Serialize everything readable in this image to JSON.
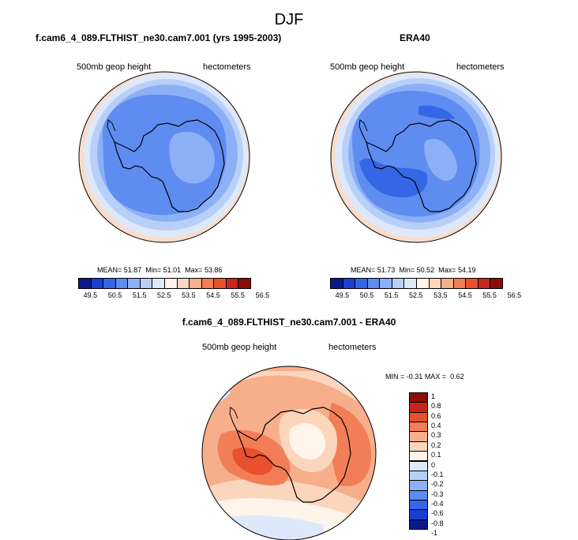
{
  "figure": {
    "title": "DJF"
  },
  "panels": [
    {
      "id": "model",
      "title": "f.cam6_4_089.FLTHIST_ne30.cam7.001 (yrs 1995-2003)",
      "variable": "500mb geop height",
      "units": "hectometers",
      "mean_label": "MEAN=",
      "mean": "51.87",
      "min_label": "Min=",
      "min": "51.01",
      "max_label": "Max=",
      "max": "53.86"
    },
    {
      "id": "obs",
      "title": "ERA40",
      "variable": "500mb geop height",
      "units": "hectometers",
      "mean_label": "MEAN=",
      "mean": "51.73",
      "min_label": "Min=",
      "min": "50.52",
      "max_label": "Max=",
      "max": "54.19"
    }
  ],
  "diff_panel": {
    "title": "f.cam6_4_089.FLTHIST_ne30.cam7.001 - ERA40",
    "variable": "500mb geop height",
    "units": "hectometers",
    "min_label": "MIN =",
    "min": "-0.31",
    "max_label": "MAX =",
    "max": "0.62"
  },
  "colorbar_abs": {
    "ticks": [
      "49.5",
      "50.5",
      "51.5",
      "52.5",
      "53.5",
      "54.5",
      "55.5",
      "56.5"
    ],
    "colors": [
      "#0a1a8c",
      "#1b3fd0",
      "#3566e6",
      "#5e8cf0",
      "#8cb0f5",
      "#b8d0f8",
      "#dde9fb",
      "#fff4ea",
      "#fbd6bd",
      "#f7ae8a",
      "#f17e57",
      "#e9502c",
      "#c8261a",
      "#8c0c07"
    ]
  },
  "colorbar_diff": {
    "ticks": [
      "1",
      "0.8",
      "0.6",
      "0.4",
      "0.3",
      "0.2",
      "0.1",
      "0",
      "-0.1",
      "-0.2",
      "-0.3",
      "-0.4",
      "-0.6",
      "-0.8",
      "-1"
    ],
    "colors": [
      "#8c0c07",
      "#c8261a",
      "#e9502c",
      "#f17e57",
      "#f7ae8a",
      "#fbd6bd",
      "#fff4ea",
      "#dde9fb",
      "#b8d0f8",
      "#8cb0f5",
      "#5e8cf0",
      "#3566e6",
      "#1b3fd0",
      "#0a1a8c"
    ]
  }
}
